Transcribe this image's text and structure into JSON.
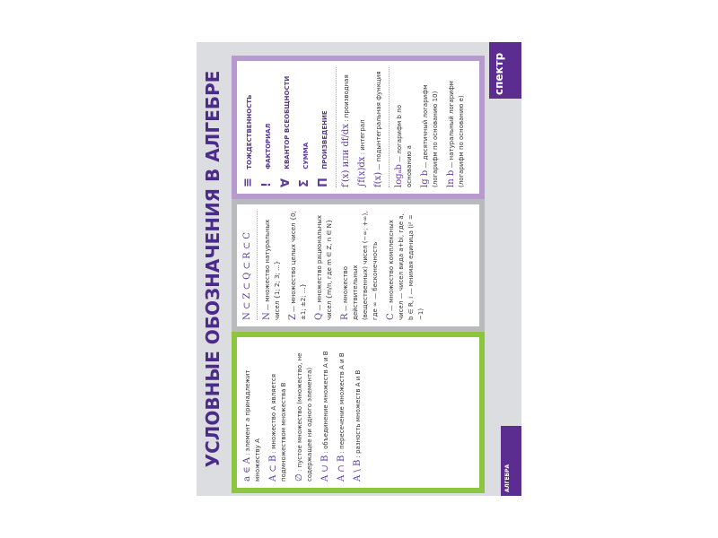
{
  "title": "УСЛОВНЫЕ ОБОЗНАЧЕНИЯ В АЛГЕБРЕ",
  "green": [
    {
      "sym": "a ∈ A",
      "text": ": элемент a принадлежит множеству A"
    },
    {
      "sym": "A ⊂ B",
      "text": ": множество A является подмножеством множества B"
    },
    {
      "sym": "∅",
      "text": ": пустое множество (множество, не содержащее ни одного элемента)"
    },
    {
      "sym": "A ∪ B",
      "text": ": объединение множеств A и B"
    },
    {
      "sym": "A ∩ B",
      "text": ": пересечение множеств A и B"
    },
    {
      "sym": "A \\ B",
      "text": ": разность множеств A и B"
    }
  ],
  "grey": {
    "chain": "N ⊂ Z ⊂ Q ⊂ R ⊂ C",
    "items": [
      {
        "sym": "N",
        "text": "— множество натуральных чисел {1; 2; 3; ...}"
      },
      {
        "sym": "Z",
        "text": "— множество целых чисел {0; ±1; ±2; ...}"
      },
      {
        "sym": "Q",
        "text": "— множество рациональных чисел {m/n, где m ∈ Z, n ∈ N}"
      },
      {
        "sym": "R",
        "text": "— множество действительных (вещественных) чисел (−∞; +∞), где ∞ — бесконечность"
      },
      {
        "sym": "C",
        "text": "— множество комплексных чисел — чисел вида a+bi, где a, b ∈ R, i — мнимая единица (i² = −1)"
      }
    ]
  },
  "purple": {
    "symbols": [
      {
        "sym": "≡",
        "label": "ТОЖДЕСТВЕННОСТЬ"
      },
      {
        "sym": "!",
        "label": "ФАКТОРИАЛ"
      },
      {
        "sym": "∀",
        "label": "КВАНТОР ВСЕОБЩНОСТИ"
      },
      {
        "sym": "Σ",
        "label": "СУММА"
      },
      {
        "sym": "Π",
        "label": "ПРОИЗВЕДЕНИЕ"
      }
    ],
    "calc": [
      {
        "sym": "f′(x) или df/dx",
        "text": ": производная"
      },
      {
        "sym": "∫f(x)dx",
        "text": ": интеграл"
      },
      {
        "sym": "f(x)",
        "text": "— подынтегральная функция"
      }
    ],
    "logs": [
      {
        "sym": "logₐb",
        "text": "— логарифм b по основанию a"
      },
      {
        "sym": "lg b",
        "text": "— десятичный логарифм (логарифм по основанию 10)"
      },
      {
        "sym": "ln b",
        "text": "— натуральный логарифм (логарифм по основанию e)"
      }
    ]
  },
  "brand": "спектр",
  "series_label": "АЛГЕБРА"
}
